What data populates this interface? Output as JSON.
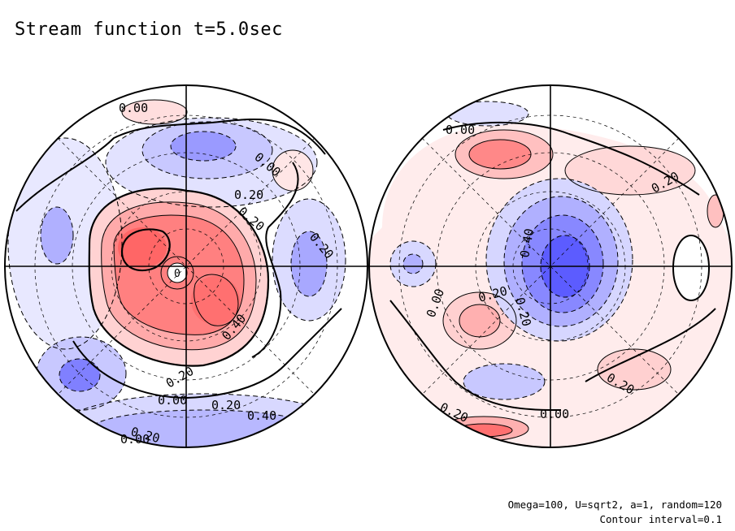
{
  "title": "Stream function t=5.0sec",
  "footer": {
    "params": "Omega=100, U=sqrt2, a=1, random=120",
    "contour_interval": "Contour interval=0.1"
  },
  "colors": {
    "positive": "#ff5a5a",
    "negative": "#4a4aff",
    "line": "#000000",
    "background": "#ffffff"
  },
  "left_hemisphere": {
    "contour_labels": [
      "0.00",
      "0.00",
      "0.20",
      "0.20",
      "0.20",
      "0.40",
      "0.20",
      "0.00",
      "0.20",
      "0.40",
      "0.20",
      "0.00",
      "0"
    ]
  },
  "right_hemisphere": {
    "contour_labels": [
      "0.00",
      "0.20",
      "0.40",
      "0.20",
      "0.20",
      "0.00",
      "0.20",
      "0.00",
      "0.20"
    ]
  }
}
